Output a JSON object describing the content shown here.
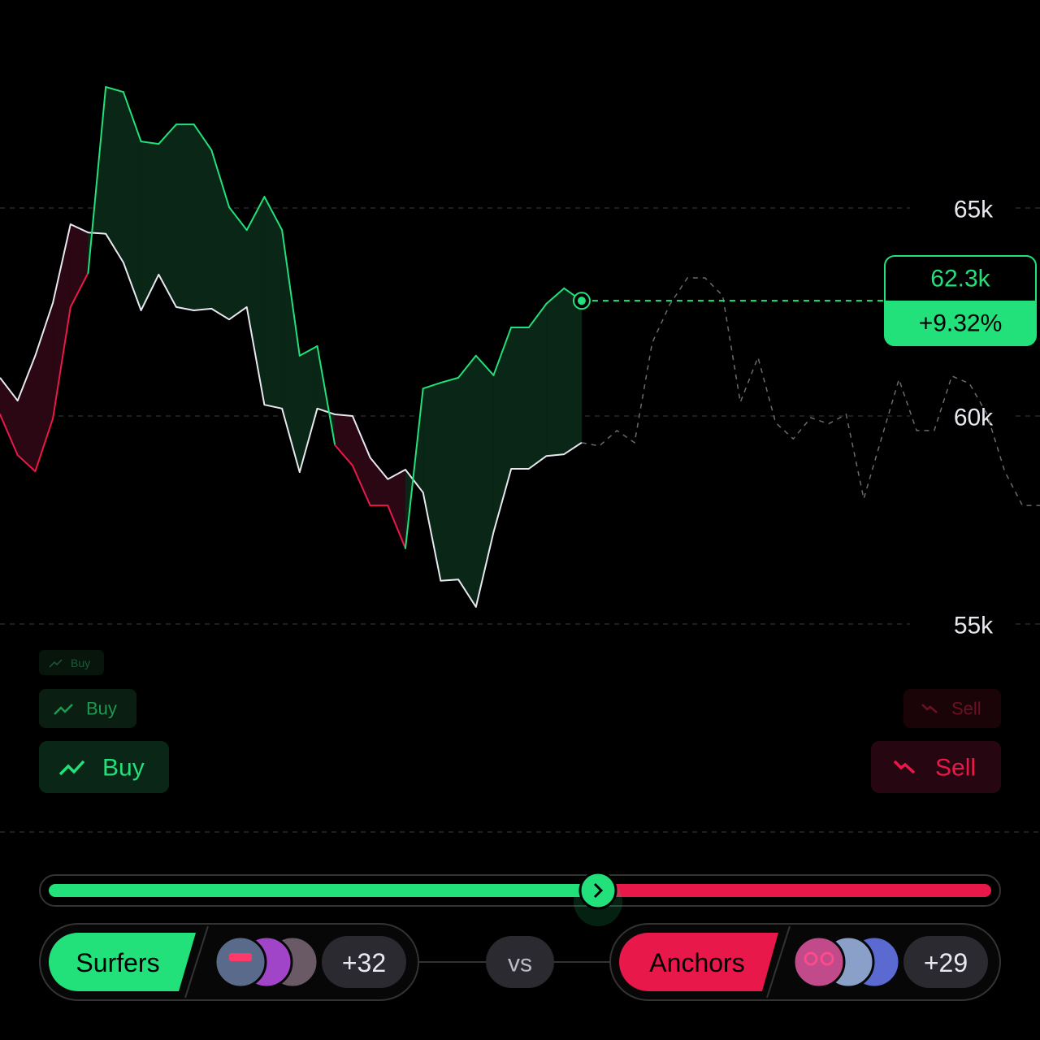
{
  "chart_data": {
    "type": "line",
    "ylim": [
      50000,
      70000
    ],
    "yticks": [
      {
        "value": 55000,
        "label": "55k"
      },
      {
        "value": 60000,
        "label": "60k"
      },
      {
        "value": 65000,
        "label": "65k"
      }
    ],
    "grid": true,
    "up_color": "#22e07a",
    "down_color": "#e8194a",
    "series": [
      {
        "color": "#22e07a",
        "values": [
          60040,
          59060,
          58670,
          59940,
          62620,
          63440,
          67910,
          67790,
          66600,
          66540,
          67010,
          67010,
          66390,
          65020,
          64470,
          65270,
          64470,
          61450,
          61680,
          59300,
          58810,
          57850,
          57850,
          56820,
          60660,
          60800,
          60920,
          61450,
          60980,
          62130,
          62130,
          62700,
          63070,
          62770,
          null,
          null,
          null,
          null,
          null,
          null,
          null,
          null,
          null,
          null,
          null,
          null,
          null,
          null,
          null,
          null,
          null,
          null,
          null,
          null,
          null,
          null,
          null,
          null,
          null,
          null
        ]
      },
      {
        "color": "#e8e8f0",
        "values": [
          60920,
          60370,
          61450,
          62720,
          64610,
          64410,
          64380,
          63690,
          62540,
          63400,
          62620,
          62540,
          62580,
          62320,
          62620,
          60270,
          60180,
          58650,
          60180,
          60040,
          60000,
          59000,
          58480,
          58710,
          58160,
          56040,
          56070,
          55410,
          57210,
          58730,
          58730,
          59040,
          59080,
          59360,
          null,
          null,
          null,
          null,
          null,
          null,
          null,
          null,
          null,
          null,
          null,
          null,
          null,
          null,
          null,
          null,
          null,
          null,
          null,
          null,
          null,
          null,
          null,
          null,
          null,
          null
        ]
      },
      {
        "color": "#6a6a6a",
        "values": [
          null,
          null,
          null,
          null,
          null,
          null,
          null,
          null,
          null,
          null,
          null,
          null,
          null,
          null,
          null,
          null,
          null,
          null,
          null,
          null,
          null,
          null,
          null,
          null,
          null,
          null,
          null,
          null,
          null,
          null,
          null,
          null,
          null,
          59360,
          59280,
          59650,
          59360,
          61760,
          62680,
          63320,
          63320,
          62890,
          60330,
          61410,
          59840,
          59450,
          59960,
          59810,
          60040,
          58010,
          59450,
          60880,
          59650,
          59650,
          60960,
          60780,
          60040,
          58670,
          57850,
          57850
        ]
      }
    ],
    "price_label": "62.3k",
    "change_label": "+9.32%"
  },
  "buttons": {
    "buy": [
      "Buy",
      "Buy",
      "Buy"
    ],
    "sell": [
      "Sell",
      "Sell"
    ]
  },
  "battle": {
    "left_team": "Surfers",
    "left_count": "+32",
    "vs": "vs",
    "right_team": "Anchors",
    "right_count": "+29"
  }
}
